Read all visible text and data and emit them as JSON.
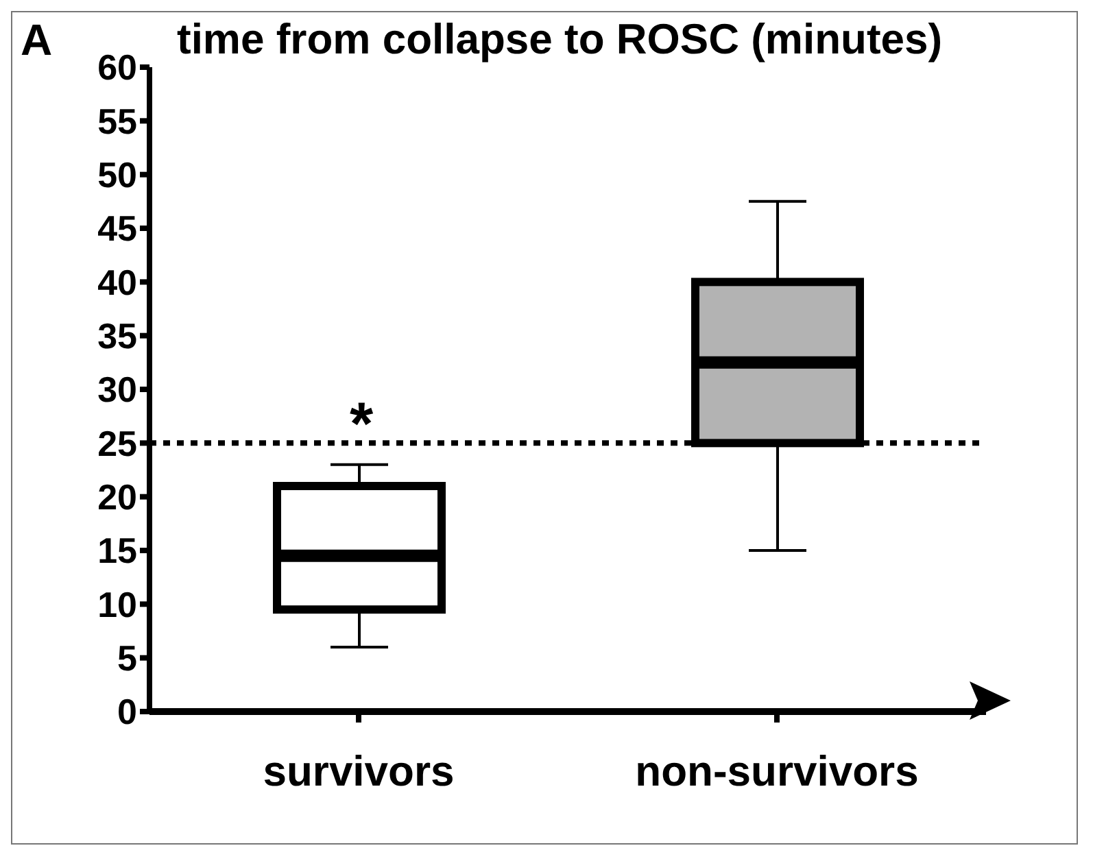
{
  "chart_data": {
    "type": "box",
    "title": "time from collapse to ROSC (minutes)",
    "categories": [
      "survivors",
      "non-survivors"
    ],
    "boxes": [
      {
        "low": 6,
        "q1": 9.5,
        "median": 14.5,
        "q3": 21,
        "high": 23
      },
      {
        "low": 15,
        "q1": 25,
        "median": 32.5,
        "q3": 40,
        "high": 47.5
      }
    ],
    "colors": [
      "#ffffff",
      "#b3b3b3"
    ],
    "ylim": [
      0,
      60
    ],
    "yticks": [
      0,
      5,
      10,
      15,
      20,
      25,
      30,
      35,
      40,
      45,
      50,
      55,
      60
    ],
    "grid": false,
    "legend": false,
    "ref_lines": [
      {
        "axis": "y",
        "value": 25,
        "line_style": "dotted",
        "color": "#000000"
      }
    ],
    "annotations": [
      "A",
      "*"
    ]
  }
}
